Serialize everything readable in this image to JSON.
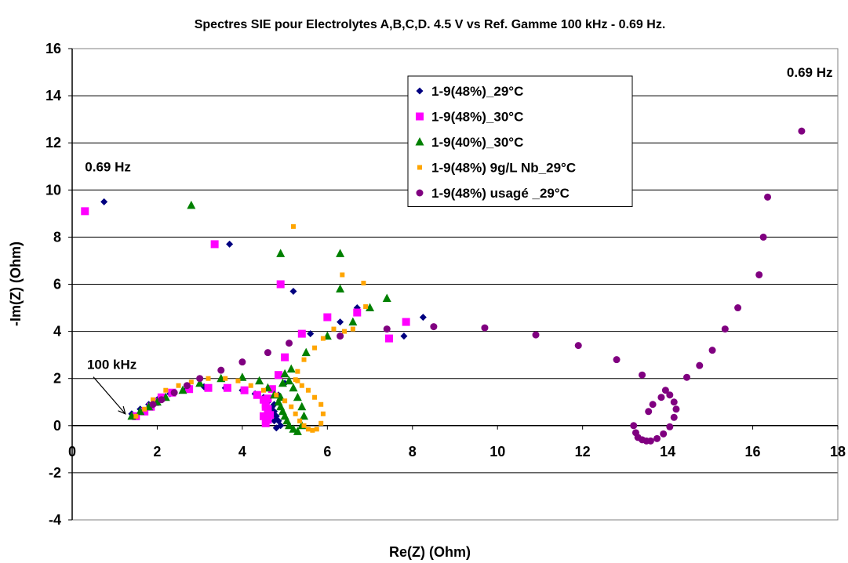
{
  "chart_data": {
    "type": "scatter",
    "title": "Spectres SIE pour Electrolytes A,B,C,D. 4.5 V vs Ref. Gamme 100 kHz - 0.69 Hz.",
    "xlabel": "Re(Z) (Ohm)",
    "ylabel": "-Im(Z) (Ohm)",
    "xlim": [
      0,
      18
    ],
    "ylim": [
      -4,
      16
    ],
    "xticks": [
      "0",
      "2",
      "4",
      "6",
      "8",
      "10",
      "12",
      "14",
      "16",
      "18"
    ],
    "yticks": [
      "-4",
      "-2",
      "0",
      "2",
      "4",
      "6",
      "8",
      "10",
      "12",
      "14",
      "16"
    ],
    "grid": "horizontal",
    "legend_position": "top-center",
    "annotations": [
      {
        "text": "0.69 Hz",
        "x": 0.3,
        "y": 10.8
      },
      {
        "text": "0.69 Hz",
        "x": 16.8,
        "y": 14.8
      },
      {
        "text": "100 kHz",
        "x": 0.35,
        "y": 2.4,
        "arrow_to": [
          1.25,
          0.5
        ]
      }
    ],
    "series": [
      {
        "name": "1-9(48%)_29°C",
        "marker": "diamond",
        "color": "#000080",
        "x": [
          1.4,
          1.6,
          1.8,
          2.0,
          2.3,
          2.7,
          3.1,
          3.6,
          4.0,
          4.3,
          4.5,
          4.6,
          4.7,
          4.75,
          4.8,
          4.85,
          4.9,
          4.8,
          4.75,
          4.7,
          4.75,
          4.85,
          5.0,
          5.2,
          5.6,
          6.3,
          6.7,
          7.8,
          8.25,
          3.7,
          0.75
        ],
        "y": [
          0.5,
          0.7,
          0.9,
          1.1,
          1.35,
          1.55,
          1.65,
          1.6,
          1.5,
          1.35,
          1.2,
          1.0,
          0.8,
          0.6,
          0.4,
          0.2,
          0.0,
          -0.1,
          0.2,
          0.5,
          0.9,
          1.3,
          1.8,
          5.7,
          3.9,
          4.4,
          5.0,
          3.8,
          4.6,
          7.7,
          9.5
        ]
      },
      {
        "name": "1-9(48%)_30°C",
        "marker": "square",
        "color": "#FF00FF",
        "x": [
          1.5,
          1.7,
          1.85,
          1.95,
          2.1,
          2.35,
          2.75,
          3.2,
          3.65,
          4.05,
          4.35,
          4.5,
          4.55,
          4.6,
          4.65,
          4.6,
          4.55,
          4.5,
          4.55,
          4.6,
          4.7,
          4.85,
          5.0,
          5.4,
          4.9,
          6.0,
          6.7,
          7.45,
          7.85,
          3.35,
          0.3
        ],
        "y": [
          0.4,
          0.6,
          0.8,
          1.0,
          1.2,
          1.4,
          1.55,
          1.6,
          1.6,
          1.5,
          1.3,
          1.1,
          0.9,
          0.7,
          0.45,
          0.25,
          0.1,
          0.4,
          0.8,
          1.15,
          1.55,
          2.15,
          2.9,
          3.9,
          6.0,
          4.6,
          4.8,
          3.7,
          4.4,
          7.7,
          9.1
        ]
      },
      {
        "name": "1-9(40%)_30°C",
        "marker": "triangle",
        "color": "#008000",
        "x": [
          1.4,
          1.6,
          1.8,
          2.0,
          2.2,
          2.6,
          3.0,
          3.5,
          4.0,
          4.4,
          4.6,
          4.75,
          4.85,
          4.9,
          4.95,
          5.0,
          5.05,
          5.1,
          5.2,
          5.3,
          5.4,
          5.45,
          5.4,
          5.3,
          5.2,
          5.1,
          5.0,
          4.95,
          4.9,
          5.15,
          5.5,
          6.0,
          6.3,
          6.6,
          7.0,
          7.4,
          6.3,
          4.9,
          2.8
        ],
        "y": [
          0.4,
          0.6,
          0.8,
          1.0,
          1.2,
          1.5,
          1.8,
          2.0,
          2.05,
          1.9,
          1.6,
          1.3,
          1.0,
          0.8,
          0.6,
          0.4,
          0.2,
          0.0,
          -0.15,
          -0.25,
          0.0,
          0.4,
          0.8,
          1.2,
          1.6,
          1.9,
          2.2,
          1.8,
          1.2,
          2.4,
          3.1,
          3.8,
          5.8,
          4.4,
          5.0,
          5.4,
          7.3,
          7.3,
          9.35
        ]
      },
      {
        "name": "1-9(48%) 9g/L Nb_29°C",
        "marker": "square-small",
        "color": "#FFA500",
        "x": [
          1.5,
          1.7,
          1.9,
          2.2,
          2.5,
          2.8,
          3.2,
          3.6,
          3.9,
          4.2,
          4.5,
          4.8,
          5.0,
          5.15,
          5.25,
          5.35,
          5.45,
          5.55,
          5.65,
          5.75,
          5.85,
          5.9,
          5.85,
          5.7,
          5.55,
          5.4,
          5.3,
          5.25,
          5.3,
          5.45,
          5.7,
          5.9,
          6.15,
          6.4,
          6.6,
          6.9,
          5.2,
          6.35,
          6.85
        ],
        "y": [
          0.4,
          0.7,
          1.1,
          1.5,
          1.7,
          1.85,
          2.0,
          2.0,
          1.9,
          1.7,
          1.5,
          1.3,
          1.05,
          0.8,
          0.5,
          0.2,
          0.0,
          -0.15,
          -0.2,
          -0.15,
          0.1,
          0.5,
          0.9,
          1.2,
          1.5,
          1.7,
          1.9,
          1.95,
          2.3,
          2.8,
          3.3,
          3.7,
          4.1,
          4.0,
          4.1,
          5.05,
          8.45,
          6.4,
          6.05
        ]
      },
      {
        "name": "1-9(48%) usagé _29°C",
        "marker": "circle",
        "color": "#800080",
        "x": [
          1.9,
          2.1,
          2.4,
          2.7,
          3.0,
          3.5,
          4.0,
          4.6,
          5.1,
          6.3,
          7.4,
          8.5,
          9.7,
          10.9,
          11.9,
          12.8,
          13.2,
          13.25,
          13.3,
          13.4,
          13.5,
          13.6,
          13.75,
          13.9,
          14.05,
          14.15,
          14.2,
          14.15,
          14.05,
          13.95,
          13.85,
          13.65,
          13.55,
          13.4,
          14.45,
          14.75,
          15.05,
          15.35,
          15.65,
          16.15,
          16.25,
          16.35,
          17.15
        ],
        "y": [
          0.9,
          1.1,
          1.4,
          1.7,
          2.0,
          2.35,
          2.7,
          3.1,
          3.5,
          3.8,
          4.1,
          4.2,
          4.15,
          3.85,
          3.4,
          2.8,
          0.0,
          -0.3,
          -0.5,
          -0.6,
          -0.65,
          -0.65,
          -0.55,
          -0.35,
          -0.05,
          0.35,
          0.7,
          1.0,
          1.3,
          1.5,
          1.2,
          0.9,
          0.6,
          2.15,
          2.05,
          2.55,
          3.2,
          4.1,
          5.0,
          6.4,
          8.0,
          9.7,
          12.5
        ]
      }
    ]
  }
}
